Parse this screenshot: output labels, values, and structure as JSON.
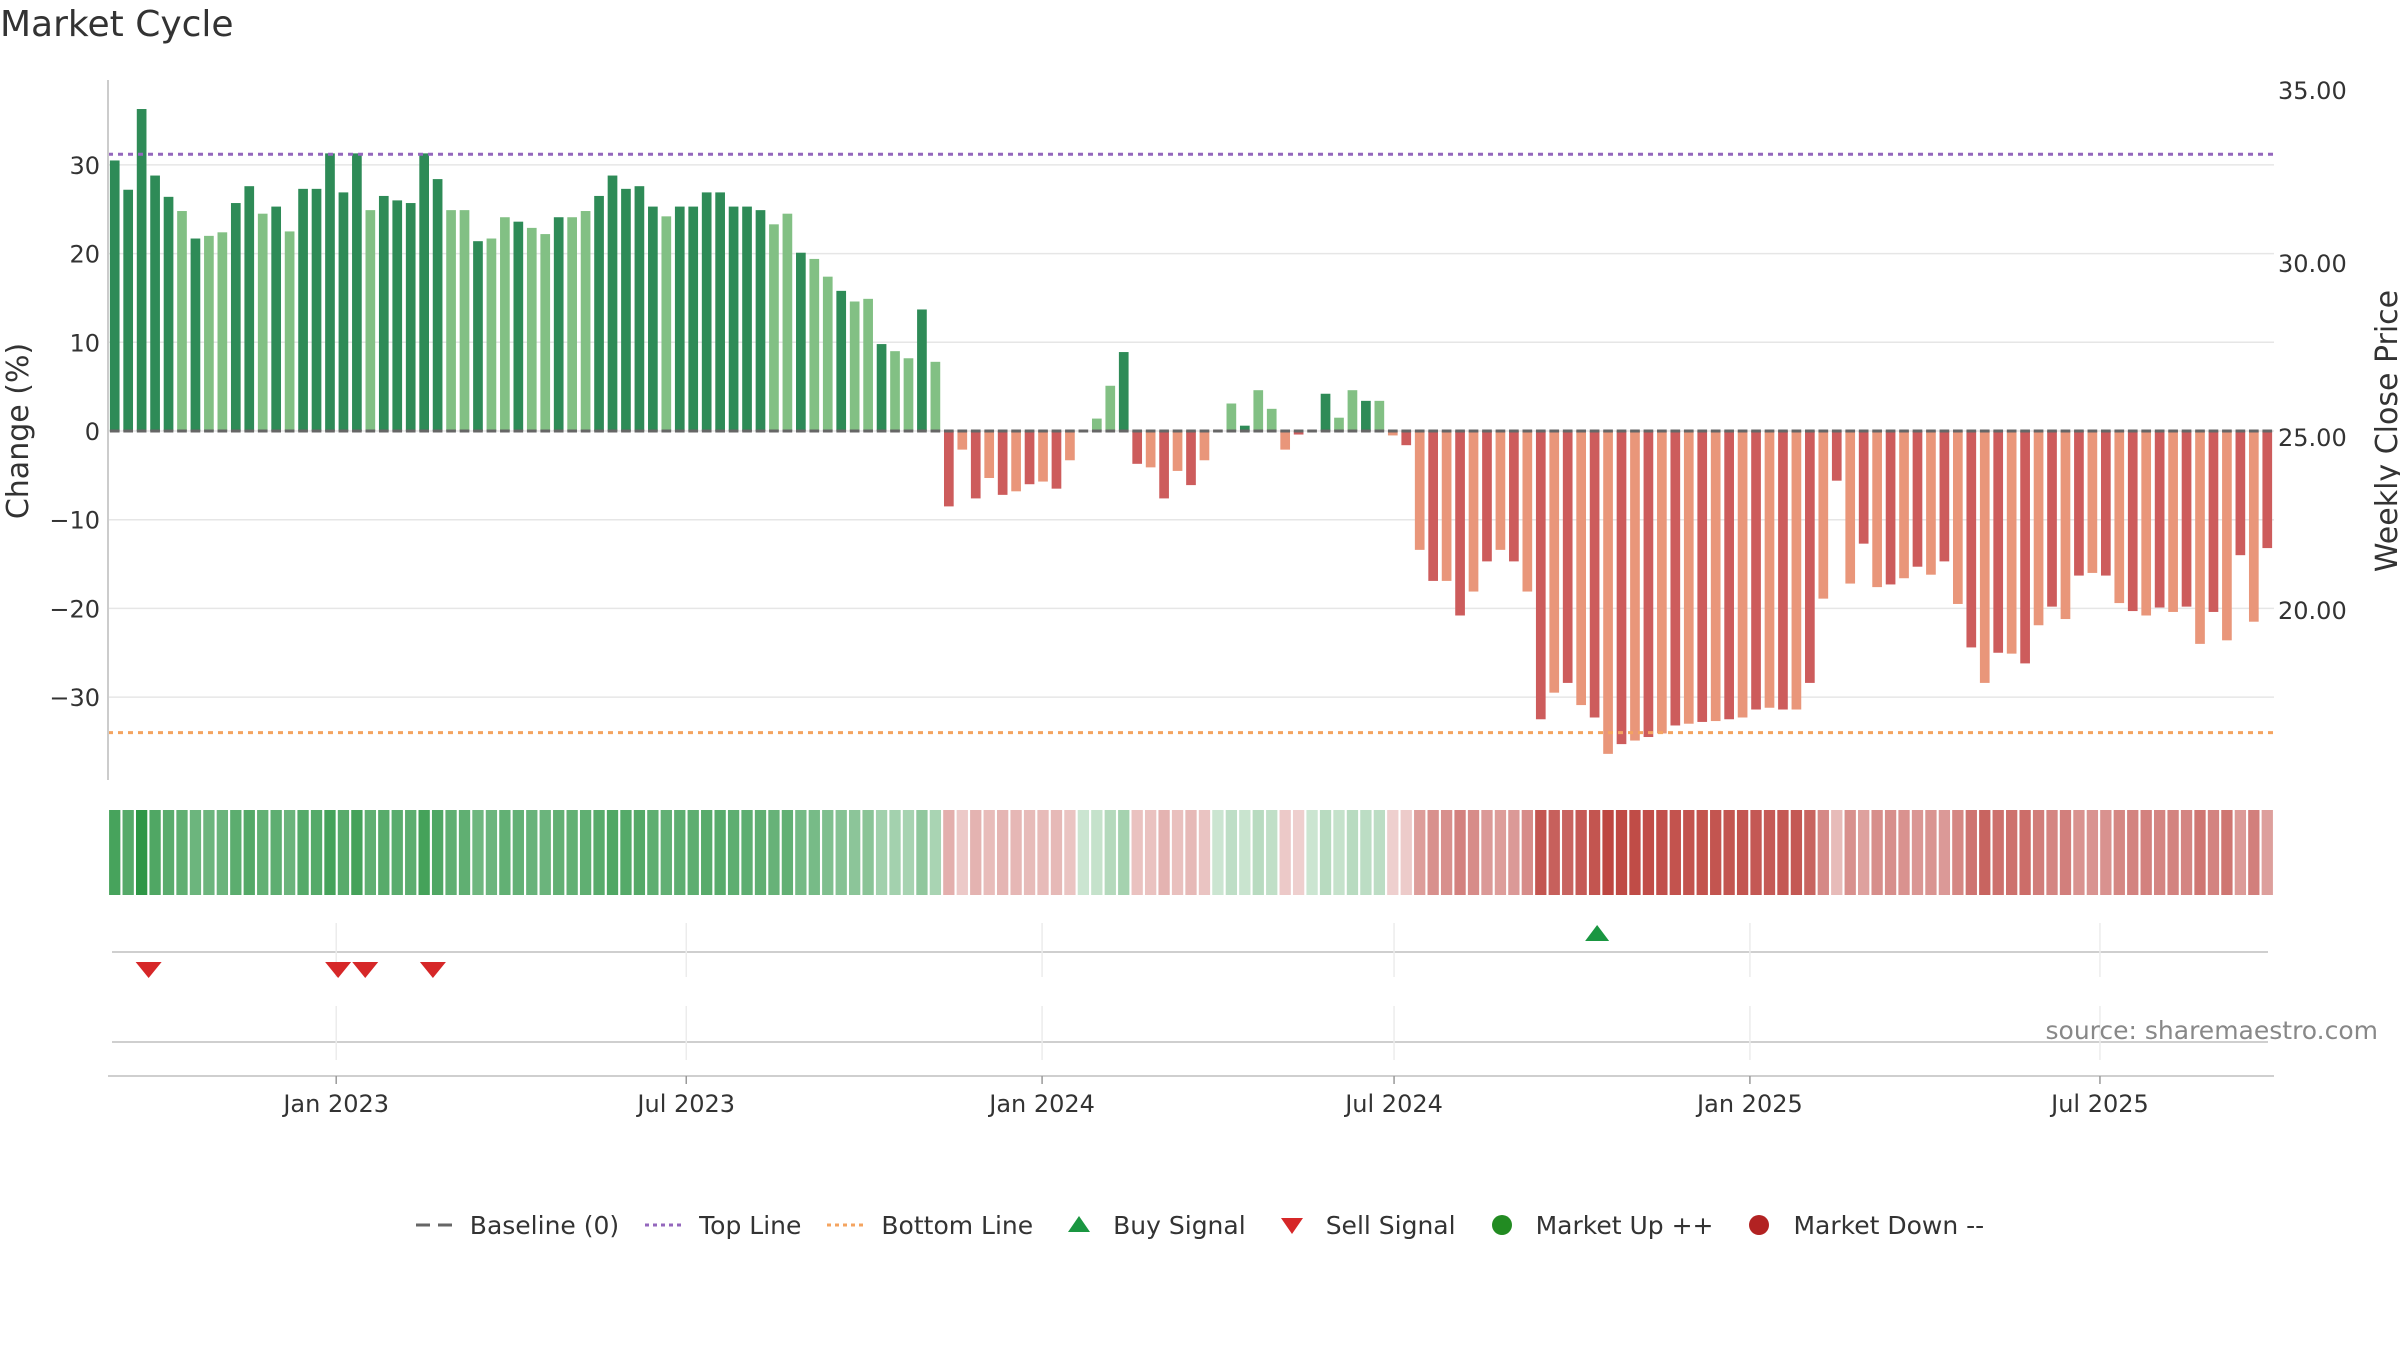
{
  "chart_data": {
    "type": "bar",
    "title": "Market Cycle",
    "ylabel": "Change (%)",
    "ylabel_right": "Weekly Close Price",
    "ylim": [
      -39,
      40
    ],
    "y_ticks": [
      30,
      20,
      10,
      0,
      -10,
      -20,
      -30
    ],
    "y_tick_labels": [
      "30",
      "20",
      "10",
      "0",
      "−10",
      "−20",
      "−30"
    ],
    "y_right_ticks": [
      "35.00",
      "30.00",
      "25.00",
      "20.00"
    ],
    "top_line": 31.2,
    "bottom_line": -34,
    "x_start": "2022-09-05",
    "x_end": "2025-09-29",
    "x_ticks": [
      {
        "date": "2023-01-01",
        "label": "Jan 2023"
      },
      {
        "date": "2023-07-01",
        "label": "Jul 2023"
      },
      {
        "date": "2024-01-01",
        "label": "Jan 2024"
      },
      {
        "date": "2024-07-01",
        "label": "Jul 2024"
      },
      {
        "date": "2025-01-01",
        "label": "Jan 2025"
      },
      {
        "date": "2025-07-01",
        "label": "Jul 2025"
      }
    ],
    "values": [
      30.5,
      27.2,
      36.3,
      28.8,
      26.4,
      24.8,
      21.7,
      22.0,
      22.4,
      25.7,
      27.6,
      24.5,
      25.3,
      22.5,
      27.3,
      27.3,
      31.3,
      26.9,
      31.3,
      24.9,
      26.5,
      26.0,
      25.7,
      31.3,
      28.4,
      24.9,
      24.9,
      21.4,
      21.7,
      24.1,
      23.6,
      22.9,
      22.2,
      24.1,
      24.1,
      24.8,
      26.5,
      28.8,
      27.3,
      27.6,
      25.3,
      24.2,
      25.3,
      25.3,
      26.9,
      26.9,
      25.3,
      25.3,
      24.9,
      23.3,
      24.5,
      20.1,
      19.4,
      17.4,
      15.8,
      14.6,
      14.9,
      9.8,
      9.0,
      8.2,
      13.7,
      7.8,
      -8.5,
      -2.1,
      -7.6,
      -5.3,
      -7.2,
      -6.8,
      -6.0,
      -5.7,
      -6.5,
      -3.3,
      0.0,
      1.4,
      5.1,
      8.9,
      -3.7,
      -4.1,
      -7.6,
      -4.5,
      -6.1,
      -3.3,
      0.0,
      3.1,
      0.6,
      4.6,
      2.5,
      -2.1,
      -0.4,
      0.0,
      4.2,
      1.5,
      4.6,
      3.4,
      3.4,
      -0.5,
      -1.6,
      -13.4,
      -16.9,
      -16.9,
      -20.8,
      -18.1,
      -14.7,
      -13.4,
      -14.7,
      -18.1,
      -32.5,
      -29.5,
      -28.4,
      -30.9,
      -32.3,
      -36.4,
      -35.3,
      -34.9,
      -34.5,
      -34.1,
      -33.2,
      -33.0,
      -32.8,
      -32.7,
      -32.5,
      -32.3,
      -31.4,
      -31.2,
      -31.4,
      -31.4,
      -28.4,
      -18.9,
      -5.6,
      -17.2,
      -12.7,
      -17.6,
      -17.3,
      -16.6,
      -15.3,
      -16.2,
      -14.7,
      -19.5,
      -24.4,
      -28.4,
      -25.0,
      -25.1,
      -26.2,
      -21.9,
      -19.8,
      -21.2,
      -16.3,
      -16.0,
      -16.3,
      -19.4,
      -20.3,
      -20.8,
      -19.9,
      -20.4,
      -19.8,
      -24.0,
      -20.4,
      -23.6,
      -14.0,
      -21.5,
      -13.2
    ],
    "series": [
      {
        "name": "Baseline (0)"
      },
      {
        "name": "Top Line"
      },
      {
        "name": "Bottom Line"
      },
      {
        "name": "Buy Signal",
        "points": [
          "2024-10-14"
        ]
      },
      {
        "name": "Sell Signal",
        "points": [
          "2022-09-26",
          "2023-01-02",
          "2023-01-16",
          "2023-02-20"
        ]
      },
      {
        "name": "Market Up ++"
      },
      {
        "name": "Market Down --"
      }
    ],
    "legend_position": "bottom",
    "grid": true,
    "annotation": "source: sharemaestro.com"
  },
  "colors": {
    "up_strong": "#2e8b57",
    "up_light": "#82c084",
    "down_strong": "#cd5c5c",
    "down_light": "#e9967a",
    "top_line": "#9467bd",
    "bottom_line": "#f4a460",
    "baseline": "#666666",
    "buy": "#1a9641",
    "sell": "#d62728",
    "market_up": "#228b22",
    "market_down": "#b22222"
  }
}
